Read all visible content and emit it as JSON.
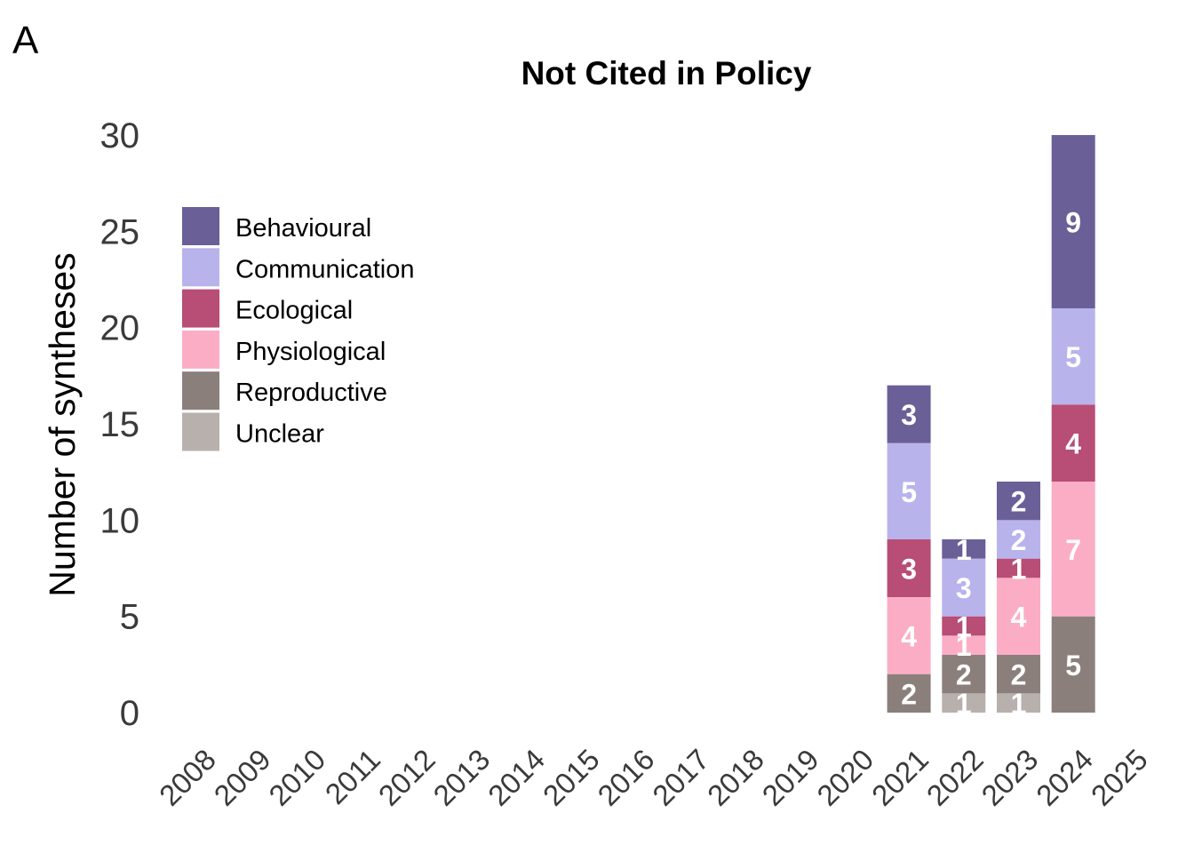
{
  "panel_label": "A",
  "chart_data": {
    "type": "bar",
    "stacked": true,
    "title": "Not Cited in Policy",
    "xlabel": "",
    "ylabel": "Number of syntheses",
    "ylim": [
      0,
      30
    ],
    "yticks": [
      0,
      5,
      10,
      15,
      20,
      25,
      30
    ],
    "grid": false,
    "legend_position": "top-left",
    "categories": [
      "2008",
      "2009",
      "2010",
      "2011",
      "2012",
      "2013",
      "2014",
      "2015",
      "2016",
      "2017",
      "2018",
      "2019",
      "2020",
      "2021",
      "2022",
      "2023",
      "2024",
      "2025"
    ],
    "series": [
      {
        "name": "Unclear",
        "color": "#b8b0ad",
        "values": [
          0,
          0,
          0,
          0,
          0,
          0,
          0,
          0,
          0,
          0,
          0,
          0,
          0,
          0,
          1,
          1,
          0,
          0
        ]
      },
      {
        "name": "Reproductive",
        "color": "#8b7f7c",
        "values": [
          0,
          0,
          0,
          0,
          0,
          0,
          0,
          0,
          0,
          0,
          0,
          0,
          0,
          2,
          2,
          2,
          5,
          0
        ]
      },
      {
        "name": "Physiological",
        "color": "#fcadc6",
        "values": [
          0,
          0,
          0,
          0,
          0,
          0,
          0,
          0,
          0,
          0,
          0,
          0,
          0,
          4,
          1,
          4,
          7,
          0
        ]
      },
      {
        "name": "Ecological",
        "color": "#b84d75",
        "values": [
          0,
          0,
          0,
          0,
          0,
          0,
          0,
          0,
          0,
          0,
          0,
          0,
          0,
          3,
          1,
          1,
          4,
          0
        ]
      },
      {
        "name": "Communication",
        "color": "#b9b3ec",
        "values": [
          0,
          0,
          0,
          0,
          0,
          0,
          0,
          0,
          0,
          0,
          0,
          0,
          0,
          5,
          3,
          2,
          5,
          0
        ]
      },
      {
        "name": "Behavioural",
        "color": "#6b5f98",
        "values": [
          0,
          0,
          0,
          0,
          0,
          0,
          0,
          0,
          0,
          0,
          0,
          0,
          0,
          3,
          1,
          2,
          9,
          0
        ]
      }
    ],
    "legend_order": [
      "Behavioural",
      "Communication",
      "Ecological",
      "Physiological",
      "Reproductive",
      "Unclear"
    ]
  }
}
